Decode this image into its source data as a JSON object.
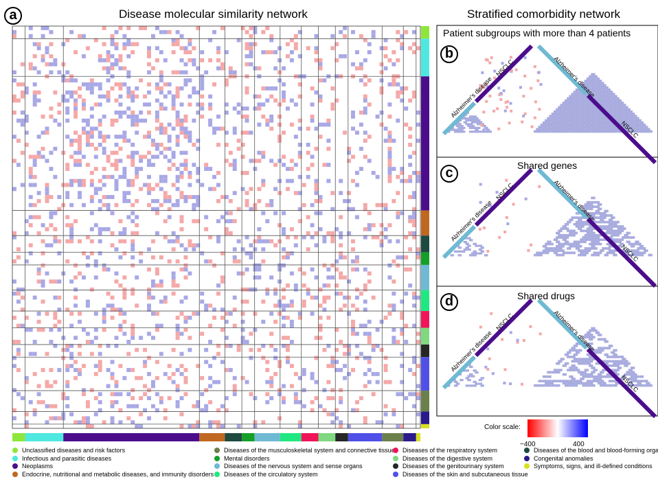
{
  "panel_a": {
    "letter": "a",
    "title": "Disease molecular similarity network"
  },
  "panel_right": {
    "title": "Stratified comorbidity network"
  },
  "panel_b": {
    "letter": "b",
    "title": "Patient subgroups with more than 4 patients"
  },
  "panel_c": {
    "letter": "c",
    "title": "Shared genes"
  },
  "panel_d": {
    "letter": "d",
    "title": "Shared drugs"
  },
  "triangle_labels": {
    "nsclc": "NSCLC",
    "alzheimers": "Alzheimer's disease"
  },
  "color_scale": {
    "label": "Color scale:",
    "min_label": "−400",
    "max_label": "400",
    "min": -400,
    "max": 400,
    "low_color": "#ff0000",
    "mid_color": "#ffffff",
    "high_color": "#0000ff"
  },
  "colors": {
    "positive_cell": "#a8a8e6",
    "negative_cell": "#f5a8a8",
    "grid_line": "#555555",
    "nsclc_bar": "#4b0d8c",
    "alz_bar": "#6fb9d3",
    "triangle_fill": "#a9acde"
  },
  "categories": [
    {
      "name": "Unclassified diseases and risk factors",
      "color": "#8ee63c"
    },
    {
      "name": "Infectious and parasitic diseases",
      "color": "#4ee8e0"
    },
    {
      "name": "Neoplasms",
      "color": "#4b0d8c"
    },
    {
      "name": "Endocrine, nutritional and metabolic diseases, and immunity disorders",
      "color": "#c06820"
    },
    {
      "name": "Diseases of the musculoskeletal system and connective tissue",
      "color": "#6b7f4a"
    },
    {
      "name": "Mental disorders",
      "color": "#14a028"
    },
    {
      "name": "Diseases of the nervous system and sense organs",
      "color": "#6fb9d3"
    },
    {
      "name": "Diseases of the circulatory system",
      "color": "#20e880"
    },
    {
      "name": "Diseases of the respiratory system",
      "color": "#f0145a"
    },
    {
      "name": "Diseases of the digestive system",
      "color": "#80d880"
    },
    {
      "name": "Diseases of the genitourinary system",
      "color": "#262626"
    },
    {
      "name": "Diseases of the skin and subcutaneous tissue",
      "color": "#5050e8"
    },
    {
      "name": "Diseases of the blood and blood-forming organs",
      "color": "#1e4a40"
    },
    {
      "name": "Congenital anomalies",
      "color": "#2a1a8c"
    },
    {
      "name": "Symptoms, signs, and ill-defined conditions",
      "color": "#d8e020"
    }
  ],
  "chart_data": {
    "type": "heatmap",
    "title": "Disease molecular similarity network",
    "color_range": [
      -400,
      400
    ],
    "axis_block_order": [
      "Unclassified diseases and risk factors",
      "Infectious and parasitic diseases",
      "Neoplasms",
      "Endocrine, nutritional and metabolic diseases, and immunity disorders",
      "Diseases of the blood and blood-forming organs",
      "Mental disorders",
      "Diseases of the nervous system and sense organs",
      "Diseases of the circulatory system",
      "Diseases of the respiratory system",
      "Diseases of the digestive system",
      "Diseases of the genitourinary system",
      "Diseases of the skin and subcutaneous tissue",
      "Diseases of the musculoskeletal system and connective tissue",
      "Congenital anomalies",
      "Symptoms, signs, and ill-defined conditions"
    ],
    "block_sizes": [
      3,
      9,
      32,
      6,
      4,
      3,
      6,
      5,
      4,
      4,
      3,
      8,
      5,
      3,
      1
    ]
  }
}
